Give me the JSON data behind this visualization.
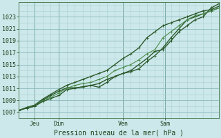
{
  "bg_color": "#cce8ea",
  "grid_minor_color": "#aad0d2",
  "grid_major_color": "#88b8ba",
  "line_dark": "#2d5a2d",
  "line_light": "#4a8a4a",
  "xlabel": "Pression niveau de la mer( hPa )",
  "yticks": [
    1007,
    1009,
    1011,
    1013,
    1015,
    1017,
    1019,
    1021,
    1023
  ],
  "ylim": [
    1006.0,
    1025.5
  ],
  "xlim": [
    0,
    100
  ],
  "xtick_positions": [
    8,
    20,
    52,
    73
  ],
  "xtick_labels": [
    "Jeu",
    "Dim",
    "Ven",
    "Sam"
  ],
  "vline_positions": [
    8,
    20,
    52,
    73
  ],
  "series": [
    {
      "x": [
        0,
        4,
        8,
        12,
        16,
        20,
        24,
        28,
        32,
        36,
        40,
        44,
        48,
        52,
        56,
        60,
        64,
        68,
        72,
        76,
        80,
        84,
        88,
        92,
        96,
        100
      ],
      "y": [
        1007.3,
        1007.7,
        1008.0,
        1008.8,
        1009.3,
        1009.8,
        1010.8,
        1011.0,
        1011.3,
        1011.5,
        1011.2,
        1012.0,
        1013.0,
        1013.5,
        1013.8,
        1014.3,
        1015.5,
        1016.5,
        1017.8,
        1019.5,
        1021.0,
        1022.5,
        1023.0,
        1023.5,
        1024.0,
        1024.5
      ],
      "lw": 1.0,
      "color": "#2d5a2d"
    },
    {
      "x": [
        0,
        4,
        8,
        12,
        16,
        20,
        24,
        28,
        32,
        36,
        40,
        44,
        48,
        52,
        56,
        60,
        64,
        68,
        72,
        76,
        80,
        84,
        88,
        92,
        96,
        100
      ],
      "y": [
        1007.3,
        1007.7,
        1008.0,
        1009.0,
        1009.8,
        1010.5,
        1011.1,
        1011.1,
        1011.2,
        1011.5,
        1011.8,
        1012.5,
        1013.0,
        1013.5,
        1014.0,
        1015.0,
        1016.0,
        1017.2,
        1017.5,
        1019.0,
        1020.5,
        1021.5,
        1022.5,
        1023.0,
        1024.5,
        1025.2
      ],
      "lw": 1.0,
      "color": "#2d5a2d"
    },
    {
      "x": [
        0,
        4,
        8,
        12,
        16,
        20,
        24,
        28,
        32,
        36,
        40,
        44,
        48,
        52,
        56,
        60,
        64,
        68,
        72,
        76,
        80,
        84,
        88,
        92,
        96,
        100
      ],
      "y": [
        1007.3,
        1007.8,
        1008.2,
        1009.0,
        1009.5,
        1010.2,
        1011.0,
        1011.5,
        1011.8,
        1012.0,
        1012.5,
        1013.0,
        1014.0,
        1014.5,
        1015.0,
        1015.8,
        1016.8,
        1017.5,
        1019.5,
        1020.5,
        1021.5,
        1022.5,
        1023.2,
        1023.5,
        1024.0,
        1024.5
      ],
      "lw": 0.8,
      "color": "#4a8a4a"
    },
    {
      "x": [
        0,
        4,
        8,
        12,
        16,
        20,
        24,
        28,
        32,
        36,
        40,
        44,
        48,
        52,
        56,
        60,
        64,
        68,
        72,
        76,
        80,
        84,
        88,
        92,
        96,
        100
      ],
      "y": [
        1007.3,
        1007.8,
        1008.2,
        1009.2,
        1010.0,
        1010.8,
        1011.5,
        1012.0,
        1012.5,
        1013.0,
        1013.5,
        1014.0,
        1015.0,
        1016.0,
        1016.8,
        1017.8,
        1019.5,
        1020.5,
        1021.5,
        1022.0,
        1022.5,
        1023.0,
        1023.5,
        1024.0,
        1024.2,
        1024.8
      ],
      "lw": 1.0,
      "color": "#2d5a2d"
    }
  ]
}
